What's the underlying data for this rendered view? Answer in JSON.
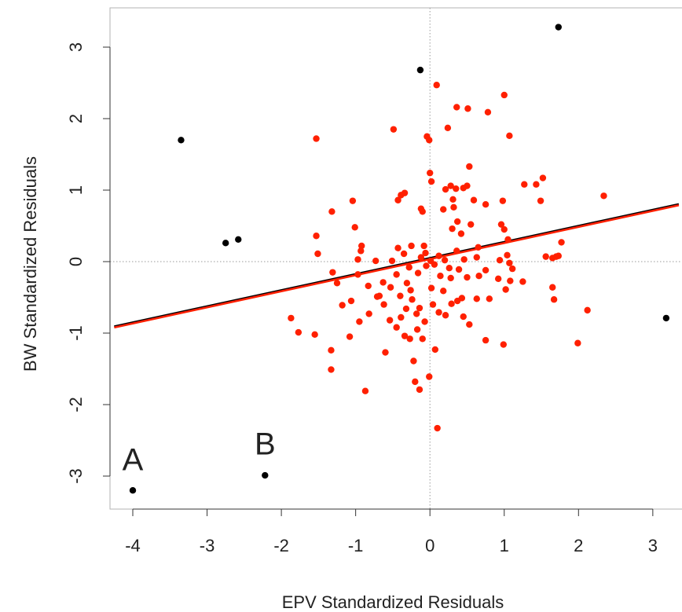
{
  "chart_data": {
    "type": "scatter",
    "xlabel": "EPV Standardized Residuals",
    "ylabel": "BW Standardized Residuals",
    "xlim": [
      -4.25,
      3.35
    ],
    "ylim": [
      -3.45,
      3.55
    ],
    "x_ticks": [
      -4,
      -3,
      -2,
      -1,
      0,
      1,
      2,
      3
    ],
    "y_ticks": [
      -3,
      -2,
      -1,
      0,
      1,
      2,
      3
    ],
    "x_tick_labels": [
      "-4",
      "-3",
      "-2",
      "-1",
      "0",
      "1",
      "2",
      "3"
    ],
    "y_tick_labels": [
      "-3",
      "-2",
      "-1",
      "0",
      "1",
      "2",
      "3"
    ],
    "reference_lines": {
      "x": 0,
      "y": 0,
      "style": "dotted",
      "color": "#9a9a9a"
    },
    "series": [
      {
        "color": "#ff2000",
        "marker": "circle",
        "points": [
          [
            -1.53,
            1.72
          ],
          [
            -0.49,
            1.85
          ],
          [
            -0.04,
            1.75
          ],
          [
            -0.01,
            1.7
          ],
          [
            0.09,
            2.47
          ],
          [
            0.24,
            1.87
          ],
          [
            0.36,
            2.16
          ],
          [
            0.51,
            2.14
          ],
          [
            0.78,
            2.09
          ],
          [
            1.0,
            2.33
          ],
          [
            1.07,
            1.76
          ],
          [
            0.53,
            1.33
          ],
          [
            0.0,
            1.24
          ],
          [
            0.02,
            1.12
          ],
          [
            -0.39,
            0.93
          ],
          [
            -0.34,
            0.96
          ],
          [
            -0.43,
            0.86
          ],
          [
            0.21,
            1.01
          ],
          [
            0.28,
            1.06
          ],
          [
            0.35,
            1.02
          ],
          [
            0.45,
            1.03
          ],
          [
            0.5,
            1.06
          ],
          [
            0.31,
            0.87
          ],
          [
            0.59,
            0.86
          ],
          [
            0.75,
            0.8
          ],
          [
            0.98,
            0.85
          ],
          [
            1.27,
            1.08
          ],
          [
            1.43,
            1.08
          ],
          [
            1.52,
            1.17
          ],
          [
            1.49,
            0.85
          ],
          [
            2.34,
            0.92
          ],
          [
            -1.04,
            0.85
          ],
          [
            -0.12,
            0.74
          ],
          [
            -0.1,
            0.7
          ],
          [
            0.18,
            0.73
          ],
          [
            0.32,
            0.76
          ],
          [
            0.37,
            0.56
          ],
          [
            0.42,
            0.39
          ],
          [
            0.55,
            0.52
          ],
          [
            0.96,
            0.52
          ],
          [
            1.0,
            0.45
          ],
          [
            1.05,
            0.31
          ],
          [
            0.65,
            0.2
          ],
          [
            1.7,
            0.07
          ],
          [
            1.77,
            0.27
          ],
          [
            1.73,
            0.08
          ],
          [
            1.56,
            0.07
          ],
          [
            1.65,
            0.05
          ],
          [
            -1.53,
            0.36
          ],
          [
            -1.51,
            0.11
          ],
          [
            -1.32,
            0.7
          ],
          [
            -1.01,
            0.48
          ],
          [
            -0.92,
            0.22
          ],
          [
            -0.93,
            0.15
          ],
          [
            -0.97,
            0.03
          ],
          [
            -0.73,
            0.01
          ],
          [
            -0.51,
            0.01
          ],
          [
            -0.43,
            0.19
          ],
          [
            -0.35,
            0.11
          ],
          [
            -0.25,
            0.22
          ],
          [
            -0.08,
            0.22
          ],
          [
            -0.06,
            0.12
          ],
          [
            -0.12,
            0.06
          ],
          [
            0.01,
            0.01
          ],
          [
            0.12,
            0.08
          ],
          [
            0.2,
            0.02
          ],
          [
            0.3,
            0.46
          ],
          [
            0.36,
            0.15
          ],
          [
            0.46,
            0.03
          ],
          [
            0.63,
            0.06
          ],
          [
            0.94,
            0.02
          ],
          [
            1.04,
            0.09
          ],
          [
            1.07,
            -0.02
          ],
          [
            1.11,
            -0.1
          ],
          [
            1.25,
            -0.28
          ],
          [
            -1.31,
            -0.15
          ],
          [
            -1.25,
            -0.3
          ],
          [
            -1.18,
            -0.61
          ],
          [
            -1.06,
            -0.55
          ],
          [
            -0.97,
            -0.18
          ],
          [
            -0.83,
            -0.34
          ],
          [
            -0.68,
            -0.48
          ],
          [
            -0.53,
            -0.36
          ],
          [
            -0.45,
            -0.18
          ],
          [
            -0.28,
            -0.08
          ],
          [
            -0.16,
            -0.16
          ],
          [
            -0.05,
            -0.06
          ],
          [
            0.06,
            -0.04
          ],
          [
            0.14,
            -0.2
          ],
          [
            0.28,
            -0.23
          ],
          [
            0.39,
            -0.11
          ],
          [
            0.5,
            -0.22
          ],
          [
            0.63,
            -0.52
          ],
          [
            0.66,
            -0.2
          ],
          [
            0.75,
            -0.12
          ],
          [
            0.92,
            -0.24
          ],
          [
            1.02,
            -0.39
          ],
          [
            1.08,
            -0.27
          ],
          [
            1.65,
            -0.36
          ],
          [
            1.67,
            -0.53
          ],
          [
            2.12,
            -0.68
          ],
          [
            1.99,
            -1.14
          ],
          [
            -1.87,
            -0.79
          ],
          [
            -1.77,
            -0.99
          ],
          [
            -1.55,
            -1.02
          ],
          [
            -1.33,
            -1.24
          ],
          [
            -1.33,
            -1.51
          ],
          [
            -1.08,
            -1.05
          ],
          [
            -0.95,
            -0.84
          ],
          [
            -0.82,
            -0.73
          ],
          [
            -0.62,
            -0.6
          ],
          [
            -0.54,
            -0.82
          ],
          [
            -0.45,
            -0.92
          ],
          [
            -0.39,
            -0.78
          ],
          [
            -0.32,
            -0.66
          ],
          [
            -0.24,
            -0.53
          ],
          [
            -0.14,
            -0.65
          ],
          [
            -0.07,
            -0.84
          ],
          [
            0.04,
            -0.6
          ],
          [
            0.12,
            -0.71
          ],
          [
            0.21,
            -0.75
          ],
          [
            0.29,
            -0.59
          ],
          [
            0.37,
            -0.55
          ],
          [
            0.45,
            -0.77
          ],
          [
            0.53,
            -0.88
          ],
          [
            0.8,
            -0.52
          ],
          [
            0.75,
            -1.1
          ],
          [
            0.99,
            -1.16
          ],
          [
            -0.87,
            -1.81
          ],
          [
            -0.6,
            -1.27
          ],
          [
            -0.34,
            -1.04
          ],
          [
            -0.27,
            -1.08
          ],
          [
            -0.22,
            -1.39
          ],
          [
            -0.17,
            -0.95
          ],
          [
            -0.1,
            -1.08
          ],
          [
            0.07,
            -1.23
          ],
          [
            -0.2,
            -1.68
          ],
          [
            -0.14,
            -1.79
          ],
          [
            -0.01,
            -1.61
          ],
          [
            0.1,
            -2.33
          ],
          [
            -0.63,
            -0.29
          ],
          [
            -0.4,
            -0.48
          ],
          [
            -0.31,
            -0.3
          ],
          [
            -0.26,
            -0.4
          ],
          [
            -0.18,
            -0.73
          ],
          [
            0.02,
            -0.37
          ],
          [
            0.18,
            -0.41
          ],
          [
            0.26,
            -0.09
          ],
          [
            0.43,
            -0.51
          ],
          [
            -0.71,
            -0.49
          ]
        ]
      },
      {
        "color": "#000000",
        "marker": "circle",
        "points": [
          [
            -3.35,
            1.7
          ],
          [
            -0.13,
            2.68
          ],
          [
            1.73,
            3.28
          ],
          [
            -2.75,
            0.26
          ],
          [
            -2.58,
            0.31
          ],
          [
            3.18,
            -0.79
          ],
          [
            -4.0,
            -3.2
          ],
          [
            -2.22,
            -2.99
          ]
        ]
      }
    ],
    "fit_lines": [
      {
        "color": "#000000",
        "intercept": 0.05,
        "slope": 0.225
      },
      {
        "color": "#ff2000",
        "intercept": 0.035,
        "slope": 0.225
      }
    ],
    "annotations": [
      {
        "text": "A",
        "x": -4.0,
        "y": -2.92
      },
      {
        "text": "B",
        "x": -2.22,
        "y": -2.7
      }
    ]
  }
}
